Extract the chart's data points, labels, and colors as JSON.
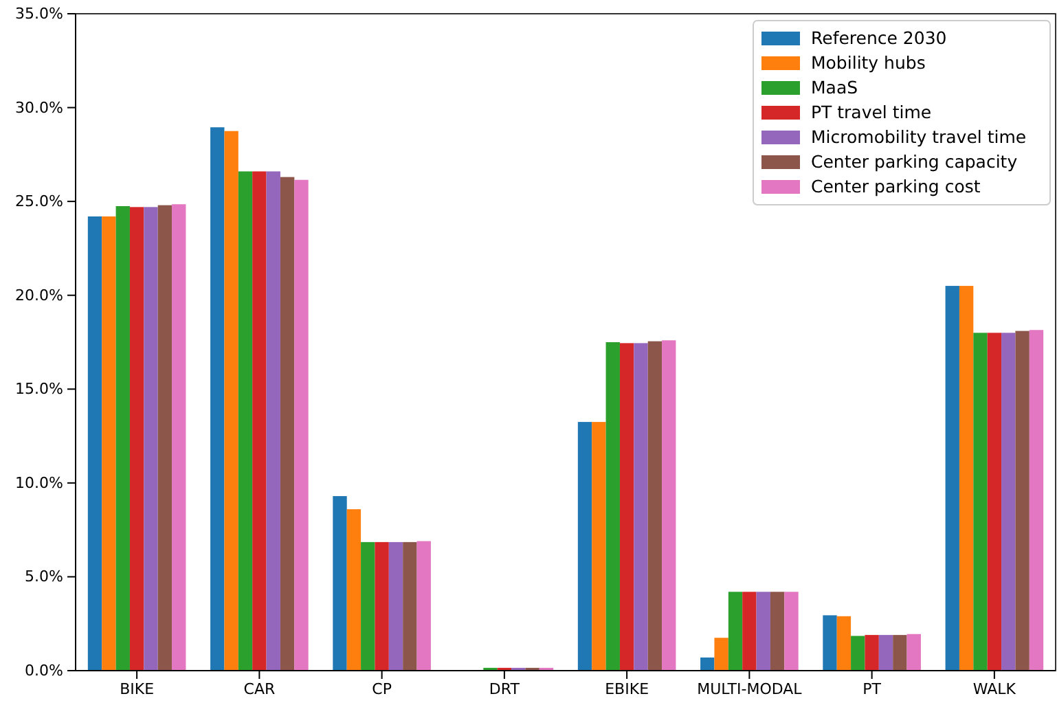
{
  "chart_data": {
    "type": "bar",
    "categories": [
      "BIKE",
      "CAR",
      "CP",
      "DRT",
      "EBIKE",
      "MULTI-MODAL",
      "PT",
      "WALK"
    ],
    "series": [
      {
        "name": "Reference 2030",
        "color": "#1f77b4",
        "values": [
          24.2,
          28.95,
          9.3,
          0,
          13.25,
          0.7,
          2.95,
          20.5
        ]
      },
      {
        "name": "Mobility hubs",
        "color": "#ff7f0e",
        "values": [
          24.2,
          28.75,
          8.6,
          0,
          13.25,
          1.75,
          2.9,
          20.5
        ]
      },
      {
        "name": "MaaS",
        "color": "#2ca02c",
        "values": [
          24.75,
          26.6,
          6.85,
          0.15,
          17.5,
          4.2,
          1.85,
          18.0
        ]
      },
      {
        "name": "PT travel time",
        "color": "#d62728",
        "values": [
          24.7,
          26.6,
          6.85,
          0.15,
          17.45,
          4.2,
          1.9,
          18.0
        ]
      },
      {
        "name": "Micromobility travel time",
        "color": "#9467bd",
        "values": [
          24.7,
          26.6,
          6.85,
          0.15,
          17.45,
          4.2,
          1.9,
          18.0
        ]
      },
      {
        "name": "Center parking capacity",
        "color": "#8c564b",
        "values": [
          24.8,
          26.3,
          6.85,
          0.15,
          17.55,
          4.2,
          1.9,
          18.1
        ]
      },
      {
        "name": "Center parking cost",
        "color": "#e377c2",
        "values": [
          24.85,
          26.15,
          6.9,
          0.15,
          17.6,
          4.2,
          1.95,
          18.15
        ]
      }
    ],
    "ylim": [
      0,
      35
    ],
    "yticks": [
      {
        "value": 0,
        "label": "0.0%"
      },
      {
        "value": 5,
        "label": "5.0%"
      },
      {
        "value": 10,
        "label": "10.0%"
      },
      {
        "value": 15,
        "label": "15.0%"
      },
      {
        "value": 20,
        "label": "20.0%"
      },
      {
        "value": 25,
        "label": "25.0%"
      },
      {
        "value": 30,
        "label": "30.0%"
      },
      {
        "value": 35,
        "label": "35.0%"
      }
    ],
    "legend": "top right"
  }
}
